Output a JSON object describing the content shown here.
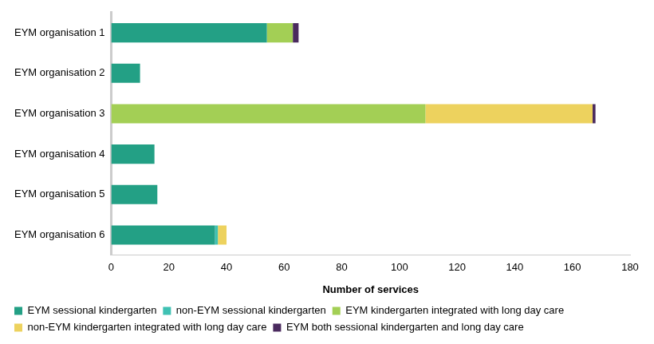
{
  "chart_data": {
    "type": "bar",
    "orientation": "horizontal",
    "stacked": true,
    "grid": false,
    "legend": "bottom",
    "x_label": "Number of services",
    "categories": [
      "EYM organisation 1",
      "EYM organisation 2",
      "EYM organisation 3",
      "EYM organisation 4",
      "EYM organisation 5",
      "EYM organisation 6"
    ],
    "xlim": [
      0,
      180
    ],
    "xticks": [
      0,
      20,
      40,
      60,
      80,
      100,
      120,
      140,
      160,
      180
    ],
    "series": [
      {
        "name": "EYM sessional kindergarten",
        "color": "#23a085",
        "values": [
          54,
          10,
          0,
          15,
          16,
          36
        ]
      },
      {
        "name": "non-EYM sessional kindergarten",
        "color": "#3fc1b3",
        "values": [
          0,
          0,
          0,
          0,
          0,
          1
        ]
      },
      {
        "name": "EYM kindergarten integrated with long day care",
        "color": "#a3cf55",
        "values": [
          9,
          0,
          109,
          0,
          0,
          0
        ]
      },
      {
        "name": "non-EYM kindergarten integrated with long day care",
        "color": "#edd25e",
        "values": [
          0,
          0,
          58,
          0,
          0,
          3
        ]
      },
      {
        "name": "EYM both sessional kindergarten and long day care",
        "color": "#4a2a5e",
        "values": [
          2,
          0,
          1,
          0,
          0,
          0
        ]
      }
    ]
  }
}
